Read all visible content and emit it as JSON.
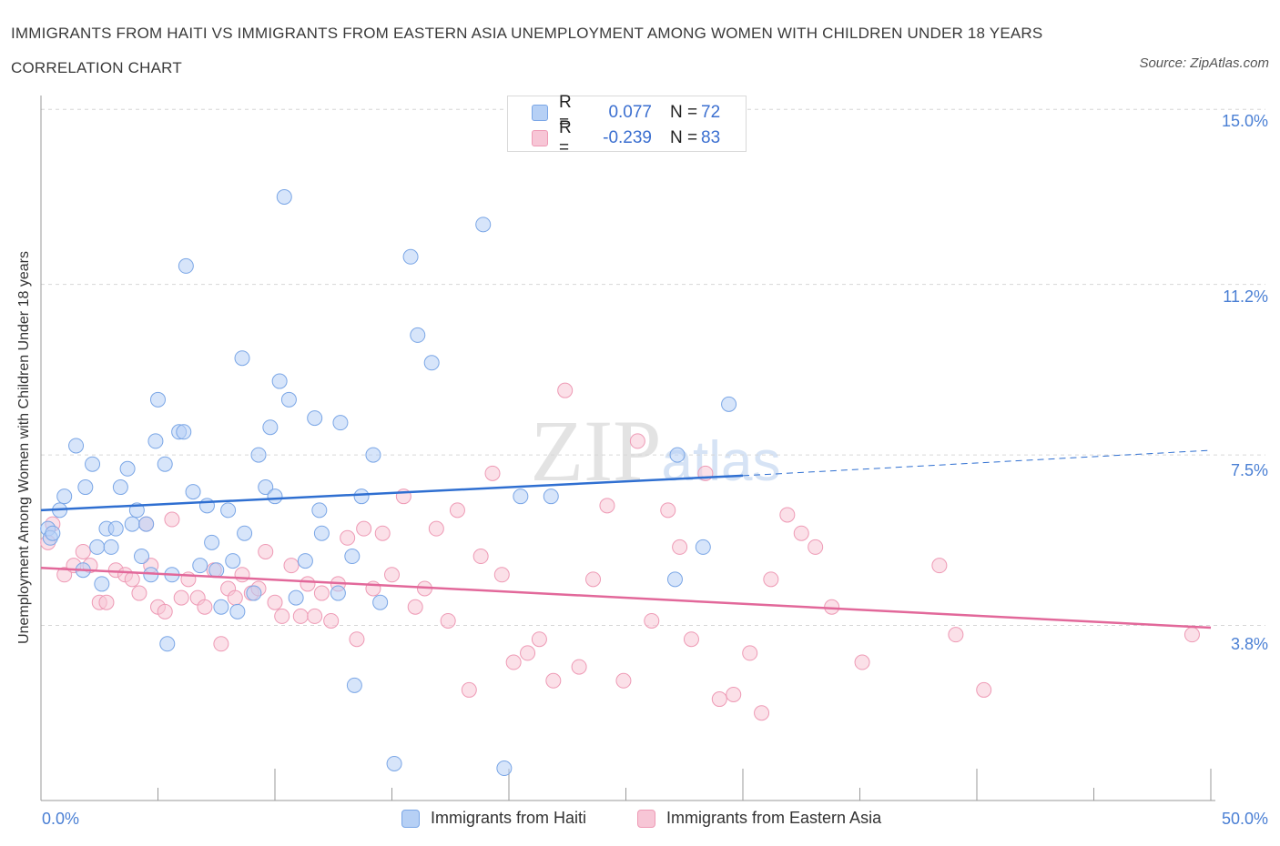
{
  "title": "IMMIGRANTS FROM HAITI VS IMMIGRANTS FROM EASTERN ASIA UNEMPLOYMENT AMONG WOMEN WITH CHILDREN UNDER 18 YEARS CORRELATION CHART",
  "source": "Source: ZipAtlas.com",
  "watermark": "ZIPatlas",
  "legend_top": {
    "haiti": {
      "r_label": "R =",
      "r_value": "0.077",
      "n_label": "N =",
      "n_value": "72"
    },
    "asia": {
      "r_label": "R =",
      "r_value": "-0.239",
      "n_label": "N =",
      "n_value": "83"
    }
  },
  "legend_bottom": {
    "haiti": "Immigrants from Haiti",
    "asia": "Immigrants from Eastern Asia"
  },
  "colors": {
    "haiti_fill": "#b6d0f5",
    "haiti_stroke": "#7aa6e6",
    "haiti_line": "#2f6fd1",
    "asia_fill": "#f7c6d6",
    "asia_stroke": "#ee9ab5",
    "asia_line": "#e2689a",
    "tick_text": "#4a7fd4",
    "grid": "#d6d6d6"
  },
  "chart_data": {
    "type": "scatter",
    "title": "IMMIGRANTS FROM HAITI VS IMMIGRANTS FROM EASTERN ASIA UNEMPLOYMENT AMONG WOMEN WITH CHILDREN UNDER 18 YEARS CORRELATION CHART",
    "xlabel": "",
    "ylabel": "Unemployment Among Women with Children Under 18 years",
    "xlim": [
      0,
      50
    ],
    "ylim": [
      0,
      15.3
    ],
    "x_tick_labels": [
      "0.0%",
      "50.0%"
    ],
    "y_ticks": [
      3.8,
      7.5,
      11.2,
      15.0
    ],
    "y_tick_labels": [
      "3.8%",
      "7.5%",
      "11.2%",
      "15.0%"
    ],
    "grid": "horizontal dashed",
    "legend_position": "top-center",
    "series": [
      {
        "name": "Immigrants from Haiti",
        "r": 0.077,
        "n": 72,
        "trend": {
          "x": [
            0,
            30
          ],
          "y": [
            6.3,
            7.05
          ],
          "dashed_extension": {
            "x": [
              30,
              50
            ],
            "y": [
              7.05,
              7.6
            ]
          }
        },
        "points": [
          [
            0.3,
            5.9
          ],
          [
            0.4,
            5.7
          ],
          [
            0.5,
            5.8
          ],
          [
            0.8,
            6.3
          ],
          [
            1.0,
            6.6
          ],
          [
            1.5,
            7.7
          ],
          [
            1.8,
            5.0
          ],
          [
            1.9,
            6.8
          ],
          [
            2.2,
            7.3
          ],
          [
            2.4,
            5.5
          ],
          [
            2.6,
            4.7
          ],
          [
            2.8,
            5.9
          ],
          [
            3.0,
            5.5
          ],
          [
            3.2,
            5.9
          ],
          [
            3.4,
            6.8
          ],
          [
            3.7,
            7.2
          ],
          [
            3.9,
            6.0
          ],
          [
            4.1,
            6.3
          ],
          [
            4.3,
            5.3
          ],
          [
            4.5,
            6.0
          ],
          [
            4.7,
            4.9
          ],
          [
            4.9,
            7.8
          ],
          [
            5.0,
            8.7
          ],
          [
            5.3,
            7.3
          ],
          [
            5.4,
            3.4
          ],
          [
            5.6,
            4.9
          ],
          [
            5.9,
            8.0
          ],
          [
            6.1,
            8.0
          ],
          [
            6.2,
            11.6
          ],
          [
            6.5,
            6.7
          ],
          [
            6.8,
            5.1
          ],
          [
            7.1,
            6.4
          ],
          [
            7.3,
            5.6
          ],
          [
            7.5,
            5.0
          ],
          [
            7.7,
            4.2
          ],
          [
            8.0,
            6.3
          ],
          [
            8.2,
            5.2
          ],
          [
            8.4,
            4.1
          ],
          [
            8.6,
            9.6
          ],
          [
            8.7,
            5.8
          ],
          [
            9.1,
            4.5
          ],
          [
            9.3,
            7.5
          ],
          [
            9.6,
            6.8
          ],
          [
            9.8,
            8.1
          ],
          [
            10.0,
            6.6
          ],
          [
            10.2,
            9.1
          ],
          [
            10.4,
            13.1
          ],
          [
            10.6,
            8.7
          ],
          [
            10.9,
            4.4
          ],
          [
            11.3,
            5.2
          ],
          [
            11.7,
            8.3
          ],
          [
            11.9,
            6.3
          ],
          [
            12.0,
            5.8
          ],
          [
            12.7,
            4.5
          ],
          [
            12.8,
            8.2
          ],
          [
            13.3,
            5.3
          ],
          [
            13.4,
            2.5
          ],
          [
            13.7,
            6.6
          ],
          [
            14.2,
            7.5
          ],
          [
            14.5,
            4.3
          ],
          [
            15.1,
            0.8
          ],
          [
            15.8,
            11.8
          ],
          [
            16.1,
            10.1
          ],
          [
            16.7,
            9.5
          ],
          [
            18.9,
            12.5
          ],
          [
            19.8,
            0.7
          ],
          [
            20.5,
            6.6
          ],
          [
            21.8,
            6.6
          ],
          [
            27.1,
            4.8
          ],
          [
            27.2,
            7.5
          ],
          [
            28.3,
            5.5
          ],
          [
            29.4,
            8.6
          ]
        ]
      },
      {
        "name": "Immigrants from Eastern Asia",
        "r": -0.239,
        "n": 83,
        "trend": {
          "x": [
            0,
            50
          ],
          "y": [
            5.05,
            3.75
          ]
        },
        "points": [
          [
            0.3,
            5.6
          ],
          [
            0.5,
            6.0
          ],
          [
            1.0,
            4.9
          ],
          [
            1.4,
            5.1
          ],
          [
            1.8,
            5.4
          ],
          [
            2.1,
            5.1
          ],
          [
            2.5,
            4.3
          ],
          [
            2.8,
            4.3
          ],
          [
            3.2,
            5.0
          ],
          [
            3.6,
            4.9
          ],
          [
            3.9,
            4.8
          ],
          [
            4.2,
            4.5
          ],
          [
            4.5,
            6.0
          ],
          [
            4.7,
            5.1
          ],
          [
            5.0,
            4.2
          ],
          [
            5.3,
            4.1
          ],
          [
            5.6,
            6.1
          ],
          [
            6.0,
            4.4
          ],
          [
            6.3,
            4.8
          ],
          [
            6.7,
            4.4
          ],
          [
            7.0,
            4.2
          ],
          [
            7.4,
            5.0
          ],
          [
            7.7,
            3.4
          ],
          [
            8.0,
            4.6
          ],
          [
            8.3,
            4.4
          ],
          [
            8.6,
            4.9
          ],
          [
            9.0,
            4.5
          ],
          [
            9.3,
            4.6
          ],
          [
            9.6,
            5.4
          ],
          [
            10.0,
            4.3
          ],
          [
            10.3,
            4.0
          ],
          [
            10.7,
            5.1
          ],
          [
            11.1,
            4.0
          ],
          [
            11.4,
            4.7
          ],
          [
            11.7,
            4.0
          ],
          [
            12.0,
            4.5
          ],
          [
            12.4,
            3.9
          ],
          [
            12.7,
            4.7
          ],
          [
            13.1,
            5.7
          ],
          [
            13.5,
            3.5
          ],
          [
            13.8,
            5.9
          ],
          [
            14.2,
            4.6
          ],
          [
            14.6,
            5.8
          ],
          [
            15.0,
            4.9
          ],
          [
            15.5,
            6.6
          ],
          [
            16.0,
            4.2
          ],
          [
            16.4,
            4.6
          ],
          [
            16.9,
            5.9
          ],
          [
            17.4,
            3.9
          ],
          [
            17.8,
            6.3
          ],
          [
            18.3,
            2.4
          ],
          [
            18.8,
            5.3
          ],
          [
            19.3,
            7.1
          ],
          [
            19.7,
            4.9
          ],
          [
            20.2,
            3.0
          ],
          [
            20.8,
            3.2
          ],
          [
            21.3,
            3.5
          ],
          [
            21.9,
            2.6
          ],
          [
            22.4,
            8.9
          ],
          [
            23.0,
            2.9
          ],
          [
            23.6,
            4.8
          ],
          [
            24.2,
            6.4
          ],
          [
            24.9,
            2.6
          ],
          [
            25.5,
            7.8
          ],
          [
            26.1,
            3.9
          ],
          [
            26.8,
            6.3
          ],
          [
            27.3,
            5.5
          ],
          [
            27.8,
            3.5
          ],
          [
            28.4,
            7.1
          ],
          [
            29.0,
            2.2
          ],
          [
            29.6,
            2.3
          ],
          [
            30.3,
            3.2
          ],
          [
            30.8,
            1.9
          ],
          [
            31.2,
            4.8
          ],
          [
            31.9,
            6.2
          ],
          [
            32.5,
            5.8
          ],
          [
            33.1,
            5.5
          ],
          [
            33.8,
            4.2
          ],
          [
            35.1,
            3.0
          ],
          [
            38.4,
            5.1
          ],
          [
            39.1,
            3.6
          ],
          [
            40.3,
            2.4
          ],
          [
            49.2,
            3.6
          ]
        ]
      }
    ]
  }
}
